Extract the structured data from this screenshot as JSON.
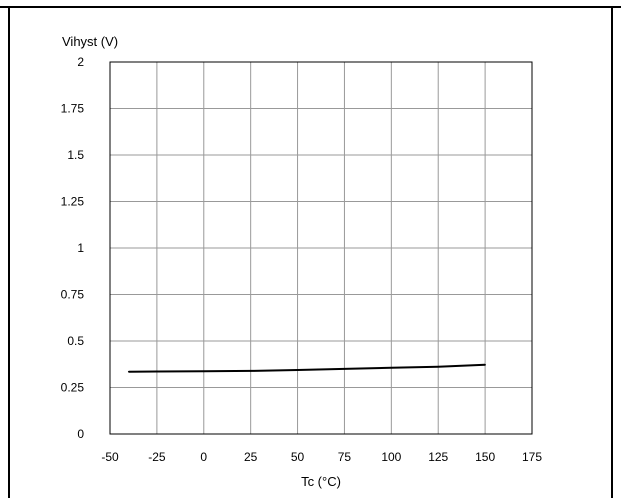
{
  "chart_data": {
    "type": "line",
    "ylabel": "Vihyst (V)",
    "xlabel": "Tc (°C)",
    "xlim": [
      -50,
      175
    ],
    "ylim": [
      0,
      2
    ],
    "xticks": [
      "-50",
      "-25",
      "0",
      "25",
      "50",
      "75",
      "100",
      "125",
      "150",
      "175"
    ],
    "yticks": [
      "0",
      "0.25",
      "0.5",
      "0.75",
      "1",
      "1.25",
      "1.5",
      "1.75",
      "2"
    ],
    "grid": true,
    "line_color": "#000000",
    "grid_color": "#999999",
    "series": [
      {
        "x": [
          -40,
          -25,
          0,
          25,
          50,
          75,
          100,
          125,
          150
        ],
        "y": [
          0.335,
          0.336,
          0.337,
          0.339,
          0.344,
          0.35,
          0.356,
          0.362,
          0.372
        ]
      }
    ]
  }
}
